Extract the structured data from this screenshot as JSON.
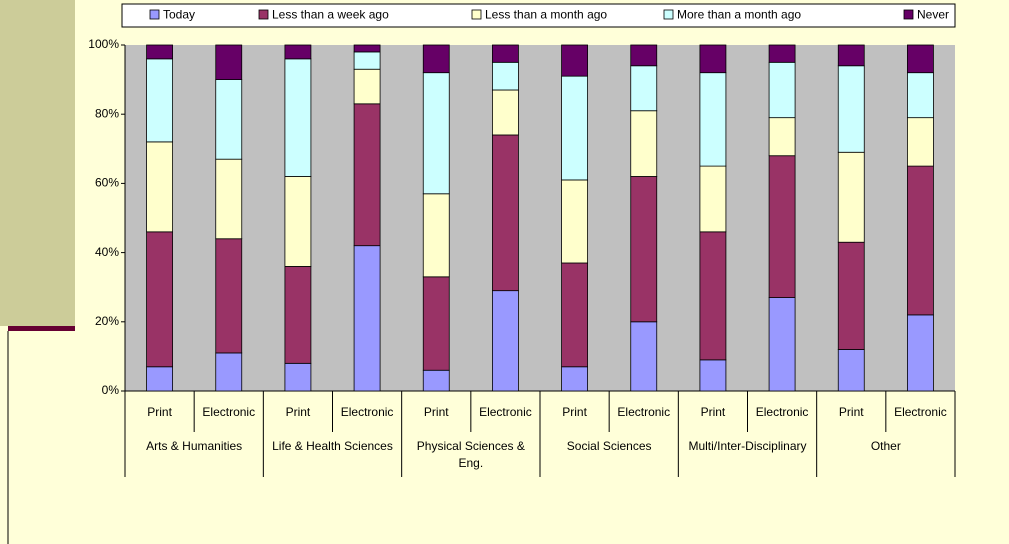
{
  "chart_data": {
    "type": "stacked_bar",
    "categories": [
      "Print",
      "Electronic",
      "Print",
      "Electronic",
      "Print",
      "Electronic",
      "Print",
      "Electronic",
      "Print",
      "Electronic",
      "Print",
      "Electronic"
    ],
    "groups": [
      "Arts & Humanities",
      "Life & Health Sciences",
      "Physical Sciences & Eng.",
      "Social Sciences",
      "Multi/Inter-Disciplinary",
      "Other"
    ],
    "series": [
      {
        "name": "Today",
        "color": "#9999ff",
        "values": [
          7,
          11,
          8,
          42,
          6,
          29,
          7,
          20,
          9,
          27,
          12,
          22
        ]
      },
      {
        "name": "Less than a week ago",
        "color": "#993366",
        "values": [
          39,
          33,
          28,
          41,
          27,
          45,
          30,
          42,
          37,
          41,
          31,
          43
        ]
      },
      {
        "name": "Less than a month ago",
        "color": "#ffffcc",
        "values": [
          26,
          23,
          26,
          10,
          24,
          13,
          24,
          19,
          19,
          11,
          26,
          14
        ]
      },
      {
        "name": "More than a month ago",
        "color": "#ccffff",
        "values": [
          24,
          23,
          34,
          5,
          35,
          8,
          30,
          13,
          27,
          16,
          25,
          13
        ]
      },
      {
        "name": "Never",
        "color": "#660066",
        "values": [
          4,
          10,
          4,
          2,
          8,
          5,
          9,
          6,
          8,
          5,
          6,
          8
        ]
      }
    ],
    "ylim": [
      0,
      100
    ],
    "yticks": [
      {
        "value": 0,
        "label": "0%"
      },
      {
        "value": 20,
        "label": "20%"
      },
      {
        "value": 40,
        "label": "40%"
      },
      {
        "value": 60,
        "label": "60%"
      },
      {
        "value": 80,
        "label": "80%"
      },
      {
        "value": 100,
        "label": "100%"
      }
    ],
    "legend": "top"
  }
}
